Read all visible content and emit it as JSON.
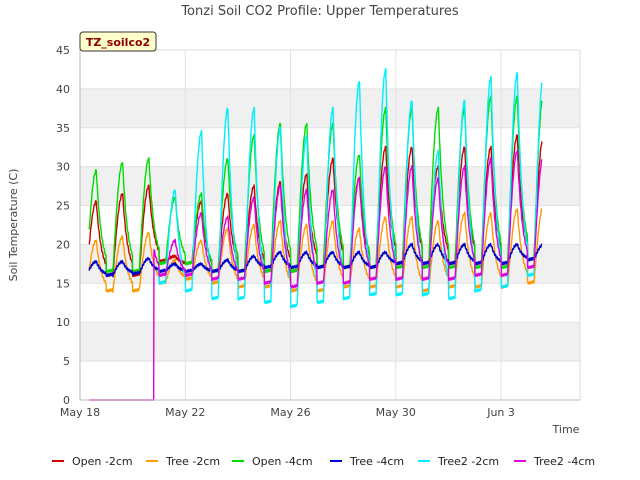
{
  "chart_data": {
    "type": "line",
    "title": "Tonzi Soil CO2 Profile: Upper Temperatures",
    "xlabel": "Time",
    "ylabel": "Soil Temperature (C)",
    "badge": "TZ_soilco2",
    "ylim": [
      0,
      45
    ],
    "yticks": [
      0,
      5,
      10,
      15,
      20,
      25,
      30,
      35,
      40,
      45
    ],
    "xlim": [
      "2020-05-18",
      "2020-06-06"
    ],
    "xticks": [
      {
        "date": "2020-05-18",
        "label": "May 18"
      },
      {
        "date": "2020-05-22",
        "label": "May 22"
      },
      {
        "date": "2020-05-26",
        "label": "May 26"
      },
      {
        "date": "2020-05-30",
        "label": "May 30"
      },
      {
        "date": "2020-06-03",
        "label": "Jun 3"
      }
    ],
    "grid": true,
    "legend": "bottom",
    "start_date": "2020-05-18",
    "series": [
      {
        "name": "Open -2cm",
        "color": "#cc0000",
        "start": 0.35,
        "end": 17.55,
        "base": 16.2,
        "peaks": [
          25.5,
          26.5,
          27.5,
          18.5,
          25.5,
          26.5,
          27.5,
          28.0,
          29.0,
          31.0,
          28.5,
          32.5,
          32.5,
          30.0,
          32.5,
          32.5,
          34.0,
          34.0
        ],
        "mins": [
          16.0,
          16.0,
          16.0,
          17.8,
          17.5,
          16.5,
          16.5,
          16.5,
          16.5,
          17.0,
          17.0,
          17.0,
          17.5,
          17.5,
          17.5,
          17.5,
          17.5,
          18.0
        ]
      },
      {
        "name": "Tree -2cm",
        "color": "#ff9900",
        "start": 0.35,
        "end": 17.55,
        "base": 14.2,
        "peaks": [
          20.5,
          21.0,
          21.5,
          18.0,
          20.5,
          22.0,
          22.5,
          23.0,
          22.5,
          23.0,
          22.0,
          23.5,
          23.5,
          23.0,
          24.0,
          24.0,
          24.5,
          25.0
        ],
        "mins": [
          14.0,
          14.0,
          14.0,
          15.0,
          15.5,
          15.0,
          14.5,
          14.5,
          14.0,
          14.0,
          14.5,
          14.5,
          14.5,
          14.0,
          14.5,
          14.5,
          14.5,
          15.0
        ]
      },
      {
        "name": "Open -4cm",
        "color": "#00dd00",
        "start": 0.35,
        "end": 17.55,
        "base": 16.2,
        "peaks": [
          29.5,
          30.5,
          31.0,
          26.0,
          26.5,
          31.0,
          34.0,
          35.5,
          35.5,
          35.5,
          31.5,
          37.5,
          37.5,
          37.5,
          37.5,
          39.0,
          39.0,
          39.5
        ],
        "mins": [
          16.5,
          16.5,
          16.5,
          17.5,
          17.5,
          16.5,
          16.5,
          16.5,
          16.5,
          17.0,
          17.0,
          17.0,
          17.0,
          17.0,
          17.0,
          17.0,
          17.0,
          18.0
        ]
      },
      {
        "name": "Tree -4cm",
        "color": "#0000cc",
        "start": 0.35,
        "end": 17.55,
        "base": 16.5,
        "peaks": [
          17.8,
          17.8,
          18.2,
          17.5,
          17.5,
          18.0,
          18.5,
          19.0,
          19.0,
          19.0,
          19.0,
          19.0,
          20.0,
          20.0,
          20.0,
          20.0,
          20.0,
          20.0
        ],
        "mins": [
          16.0,
          16.0,
          16.2,
          16.5,
          16.5,
          16.5,
          16.5,
          17.0,
          17.0,
          17.0,
          17.0,
          17.0,
          17.5,
          17.5,
          17.5,
          17.5,
          17.5,
          18.0
        ]
      },
      {
        "name": "Tree2 -2cm",
        "color": "#00eeff",
        "start": 2.95,
        "end": 17.55,
        "base": 15.5,
        "peaks": [
          31.0,
          17.5,
          24.5,
          27.0,
          34.5,
          37.5,
          37.5,
          35.0,
          34.0,
          37.5,
          41.0,
          42.5,
          38.5,
          32.0,
          38.5,
          41.5,
          42.0,
          42.0
        ],
        "mins": [
          15.0,
          15.0,
          15.0,
          15.0,
          14.0,
          13.0,
          13.0,
          12.5,
          12.0,
          12.5,
          13.0,
          13.5,
          13.5,
          13.5,
          13.0,
          14.0,
          14.5,
          16.0
        ]
      },
      {
        "name": "Tree2 -4cm",
        "color": "#dd00dd",
        "start": 0.35,
        "end": 17.55,
        "base": 16.0,
        "peaks": [
          0,
          0,
          25.0,
          20.5,
          24.0,
          23.5,
          26.0,
          27.5,
          27.0,
          27.0,
          28.5,
          30.0,
          30.0,
          28.5,
          30.0,
          31.0,
          32.0,
          31.5
        ],
        "mins": [
          0,
          0,
          16.5,
          16.0,
          16.0,
          15.5,
          15.5,
          15.0,
          14.5,
          15.0,
          15.0,
          15.5,
          15.5,
          15.5,
          15.5,
          16.0,
          16.0,
          17.0
        ],
        "zero_until": 2.8
      }
    ]
  }
}
